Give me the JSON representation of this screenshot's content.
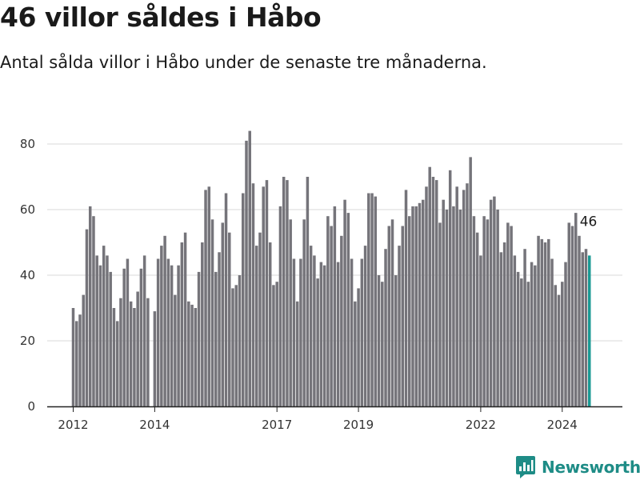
{
  "header": {
    "title": "46 villor såldes i Håbo",
    "subtitle": "Antal sålda villor i Håbo under de senaste tre månaderna."
  },
  "footer": {
    "brand": "Newsworthy",
    "brand_icon": "newsworthy-chart-icon"
  },
  "colors": {
    "bar": "#75747a",
    "highlight": "#1a9a94",
    "grid": "#d9d9d9",
    "axis": "#222222",
    "brand": "#1e8c86"
  },
  "chart_data": {
    "type": "bar",
    "title": "46 villor såldes i Håbo",
    "subtitle": "Antal sålda villor i Håbo under de senaste tre månaderna.",
    "xlabel": "",
    "ylabel": "",
    "ylim": [
      0,
      80
    ],
    "yticks": [
      0,
      20,
      40,
      60,
      80
    ],
    "grid": true,
    "x_tick_labels": [
      {
        "label": "2012",
        "index": 0
      },
      {
        "label": "2014",
        "index": 24
      },
      {
        "label": "2017",
        "index": 60
      },
      {
        "label": "2019",
        "index": 84
      },
      {
        "label": "2022",
        "index": 120
      },
      {
        "label": "2024",
        "index": 144
      }
    ],
    "first_period": "2012-01",
    "frequency": "monthly",
    "highlight_last": true,
    "last_value_label": "46",
    "values": [
      30,
      26,
      28,
      34,
      54,
      61,
      58,
      46,
      43,
      49,
      46,
      41,
      30,
      26,
      33,
      42,
      45,
      32,
      30,
      35,
      42,
      46,
      33,
      null,
      29,
      45,
      49,
      52,
      45,
      43,
      34,
      43,
      50,
      53,
      32,
      31,
      30,
      41,
      50,
      66,
      67,
      57,
      41,
      47,
      56,
      65,
      53,
      36,
      37,
      40,
      65,
      81,
      84,
      68,
      49,
      53,
      67,
      69,
      50,
      37,
      38,
      61,
      70,
      69,
      57,
      45,
      32,
      45,
      57,
      70,
      49,
      46,
      39,
      44,
      43,
      58,
      55,
      61,
      44,
      52,
      63,
      59,
      45,
      32,
      36,
      45,
      49,
      65,
      65,
      64,
      40,
      38,
      48,
      55,
      57,
      40,
      49,
      55,
      66,
      58,
      61,
      61,
      62,
      63,
      67,
      73,
      70,
      69,
      56,
      63,
      60,
      72,
      61,
      67,
      60,
      66,
      68,
      76,
      58,
      53,
      46,
      58,
      57,
      63,
      64,
      60,
      47,
      50,
      56,
      55,
      46,
      41,
      39,
      48,
      38,
      44,
      43,
      52,
      51,
      50,
      51,
      45,
      37,
      34,
      38,
      44,
      56,
      55,
      59,
      52,
      47,
      48,
      46
    ]
  }
}
